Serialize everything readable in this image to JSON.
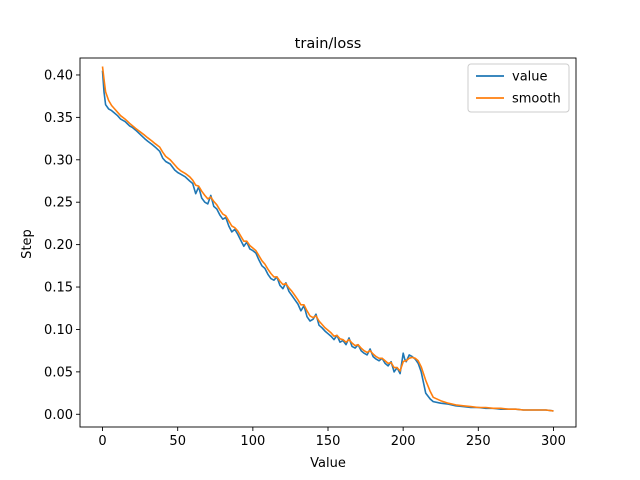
{
  "chart_data": {
    "type": "line",
    "title": "train/loss",
    "xlabel": "Value",
    "ylabel": "Step",
    "xlim": [
      -15,
      315
    ],
    "ylim": [
      -0.015,
      0.42
    ],
    "xticks": [
      0,
      50,
      100,
      150,
      200,
      250,
      300
    ],
    "yticks": [
      0.0,
      0.05,
      0.1,
      0.15,
      0.2,
      0.25,
      0.3,
      0.35,
      0.4
    ],
    "xtick_labels": [
      "0",
      "50",
      "100",
      "150",
      "200",
      "250",
      "300"
    ],
    "ytick_labels": [
      "0.00",
      "0.05",
      "0.10",
      "0.15",
      "0.20",
      "0.25",
      "0.30",
      "0.35",
      "0.40"
    ],
    "grid": false,
    "legend_position": "top-right",
    "series": [
      {
        "name": "value",
        "color": "#1f77b4",
        "x": [
          0,
          1,
          2,
          4,
          6,
          8,
          10,
          12,
          15,
          18,
          20,
          22,
          25,
          28,
          30,
          33,
          35,
          38,
          40,
          42,
          45,
          48,
          50,
          52,
          55,
          58,
          60,
          62,
          64,
          66,
          68,
          70,
          72,
          74,
          76,
          78,
          80,
          82,
          84,
          86,
          88,
          90,
          92,
          94,
          96,
          98,
          100,
          102,
          104,
          106,
          108,
          110,
          112,
          114,
          116,
          118,
          120,
          122,
          124,
          126,
          128,
          130,
          132,
          134,
          136,
          138,
          140,
          142,
          144,
          146,
          148,
          150,
          152,
          154,
          156,
          158,
          160,
          162,
          164,
          166,
          168,
          170,
          172,
          174,
          176,
          178,
          180,
          182,
          184,
          186,
          188,
          190,
          192,
          194,
          196,
          198,
          200,
          201,
          202,
          204,
          206,
          208,
          210,
          212,
          215,
          218,
          220,
          225,
          230,
          235,
          240,
          245,
          250,
          255,
          260,
          265,
          270,
          275,
          280,
          285,
          290,
          295,
          300
        ],
        "y": [
          0.405,
          0.38,
          0.365,
          0.36,
          0.358,
          0.355,
          0.352,
          0.348,
          0.345,
          0.34,
          0.338,
          0.335,
          0.33,
          0.325,
          0.322,
          0.318,
          0.315,
          0.31,
          0.302,
          0.298,
          0.295,
          0.288,
          0.285,
          0.283,
          0.28,
          0.275,
          0.272,
          0.26,
          0.268,
          0.255,
          0.25,
          0.248,
          0.258,
          0.245,
          0.242,
          0.235,
          0.23,
          0.232,
          0.222,
          0.215,
          0.218,
          0.212,
          0.205,
          0.198,
          0.203,
          0.195,
          0.193,
          0.19,
          0.182,
          0.175,
          0.172,
          0.165,
          0.16,
          0.158,
          0.162,
          0.152,
          0.148,
          0.155,
          0.145,
          0.14,
          0.135,
          0.13,
          0.122,
          0.128,
          0.115,
          0.11,
          0.112,
          0.118,
          0.105,
          0.102,
          0.098,
          0.095,
          0.092,
          0.088,
          0.093,
          0.085,
          0.087,
          0.082,
          0.09,
          0.08,
          0.078,
          0.082,
          0.075,
          0.072,
          0.07,
          0.077,
          0.068,
          0.065,
          0.063,
          0.066,
          0.06,
          0.057,
          0.062,
          0.05,
          0.055,
          0.048,
          0.072,
          0.065,
          0.062,
          0.07,
          0.068,
          0.065,
          0.06,
          0.05,
          0.025,
          0.018,
          0.015,
          0.013,
          0.012,
          0.01,
          0.009,
          0.008,
          0.008,
          0.007,
          0.007,
          0.006,
          0.006,
          0.006,
          0.005,
          0.005,
          0.005,
          0.005,
          0.004
        ]
      },
      {
        "name": "smooth",
        "color": "#ff7f0e",
        "x": [
          0,
          1,
          2,
          4,
          6,
          8,
          10,
          12,
          15,
          18,
          20,
          22,
          25,
          28,
          30,
          33,
          35,
          38,
          40,
          42,
          45,
          48,
          50,
          52,
          55,
          58,
          60,
          62,
          64,
          66,
          68,
          70,
          72,
          74,
          76,
          78,
          80,
          82,
          84,
          86,
          88,
          90,
          92,
          94,
          96,
          98,
          100,
          102,
          104,
          106,
          108,
          110,
          112,
          114,
          116,
          118,
          120,
          122,
          124,
          126,
          128,
          130,
          132,
          134,
          136,
          138,
          140,
          142,
          144,
          146,
          148,
          150,
          152,
          154,
          156,
          158,
          160,
          162,
          164,
          166,
          168,
          170,
          172,
          174,
          176,
          178,
          180,
          182,
          184,
          186,
          188,
          190,
          192,
          194,
          196,
          198,
          200,
          201,
          202,
          204,
          206,
          208,
          210,
          212,
          215,
          218,
          220,
          225,
          230,
          235,
          240,
          245,
          250,
          255,
          260,
          265,
          270,
          275,
          280,
          285,
          290,
          295,
          300
        ],
        "y": [
          0.41,
          0.395,
          0.38,
          0.37,
          0.364,
          0.36,
          0.356,
          0.352,
          0.348,
          0.343,
          0.34,
          0.337,
          0.333,
          0.329,
          0.326,
          0.322,
          0.319,
          0.315,
          0.309,
          0.304,
          0.3,
          0.294,
          0.29,
          0.287,
          0.284,
          0.28,
          0.276,
          0.27,
          0.269,
          0.263,
          0.258,
          0.254,
          0.256,
          0.251,
          0.247,
          0.241,
          0.236,
          0.234,
          0.228,
          0.222,
          0.22,
          0.216,
          0.21,
          0.204,
          0.204,
          0.199,
          0.196,
          0.193,
          0.187,
          0.181,
          0.177,
          0.171,
          0.166,
          0.162,
          0.162,
          0.157,
          0.153,
          0.154,
          0.149,
          0.145,
          0.14,
          0.135,
          0.129,
          0.129,
          0.122,
          0.116,
          0.114,
          0.116,
          0.11,
          0.106,
          0.102,
          0.099,
          0.096,
          0.092,
          0.093,
          0.089,
          0.088,
          0.085,
          0.088,
          0.084,
          0.081,
          0.082,
          0.078,
          0.075,
          0.073,
          0.075,
          0.071,
          0.068,
          0.066,
          0.066,
          0.063,
          0.06,
          0.061,
          0.055,
          0.055,
          0.051,
          0.062,
          0.063,
          0.063,
          0.066,
          0.067,
          0.066,
          0.063,
          0.056,
          0.04,
          0.027,
          0.02,
          0.016,
          0.013,
          0.011,
          0.01,
          0.009,
          0.008,
          0.008,
          0.007,
          0.007,
          0.006,
          0.006,
          0.005,
          0.005,
          0.005,
          0.005,
          0.004
        ]
      }
    ]
  }
}
